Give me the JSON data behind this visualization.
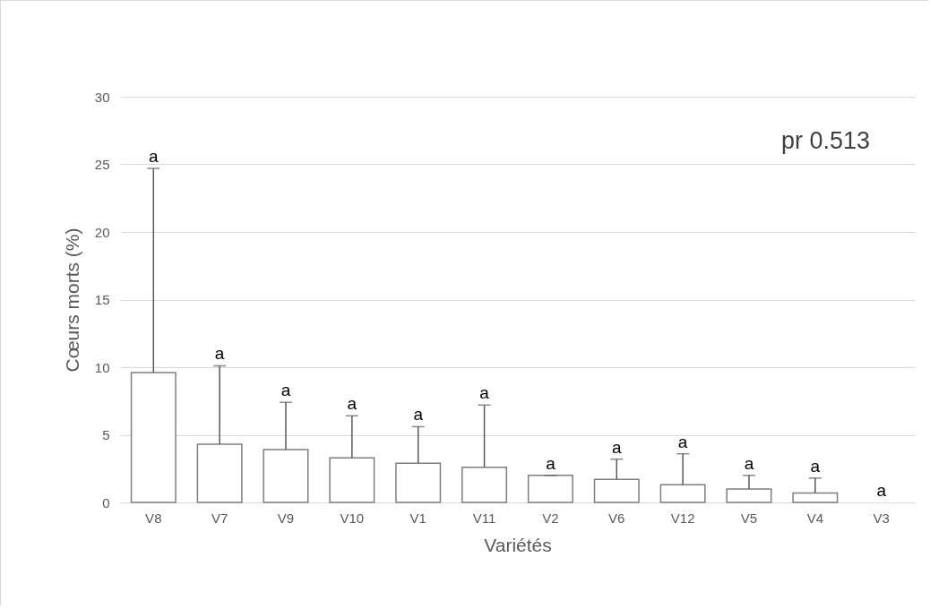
{
  "chart_data": {
    "type": "bar",
    "xlabel": "Variétés",
    "ylabel": "Cœurs morts  (%)",
    "categories": [
      "V8",
      "V7",
      "V9",
      "V10",
      "V1",
      "V11",
      "V2",
      "V6",
      "V12",
      "V5",
      "V4",
      "V3"
    ],
    "series": [
      {
        "color": "#ffffff",
        "values": [
          9.6,
          4.3,
          3.9,
          3.3,
          2.9,
          2.6,
          2.0,
          1.7,
          1.3,
          1.0,
          0.7,
          0
        ],
        "errors": [
          [
            9.6,
            24.7
          ],
          [
            4.3,
            10.1
          ],
          [
            3.9,
            7.4
          ],
          [
            3.3,
            6.4
          ],
          [
            2.9,
            5.6
          ],
          [
            2.6,
            7.2
          ],
          [
            2.0,
            2.0
          ],
          [
            1.7,
            3.2
          ],
          [
            1.3,
            3.6
          ],
          [
            1.0,
            2.0
          ],
          [
            0.7,
            1.8
          ],
          null
        ]
      }
    ],
    "ylim": [
      0,
      30
    ],
    "yticks": [
      0,
      5,
      10,
      15,
      20,
      25,
      30
    ],
    "grid": "y",
    "annotations": [
      {
        "text": "a",
        "x": "V8",
        "y": 24.7
      },
      {
        "text": "a",
        "x": "V7",
        "y": 10.1
      },
      {
        "text": "a",
        "x": "V9",
        "y": 7.4
      },
      {
        "text": "a",
        "x": "V10",
        "y": 6.4
      },
      {
        "text": "a",
        "x": "V1",
        "y": 5.6
      },
      {
        "text": "a",
        "x": "V11",
        "y": 7.2
      },
      {
        "text": "a",
        "x": "V2",
        "y": 2.0
      },
      {
        "text": "a",
        "x": "V6",
        "y": 3.2
      },
      {
        "text": "a",
        "x": "V12",
        "y": 3.6
      },
      {
        "text": "a",
        "x": "V5",
        "y": 2.0
      },
      {
        "text": "a",
        "x": "V4",
        "y": 1.8
      },
      {
        "text": "a",
        "x": "V3",
        "y": 0
      },
      "pr  0.513"
    ]
  }
}
